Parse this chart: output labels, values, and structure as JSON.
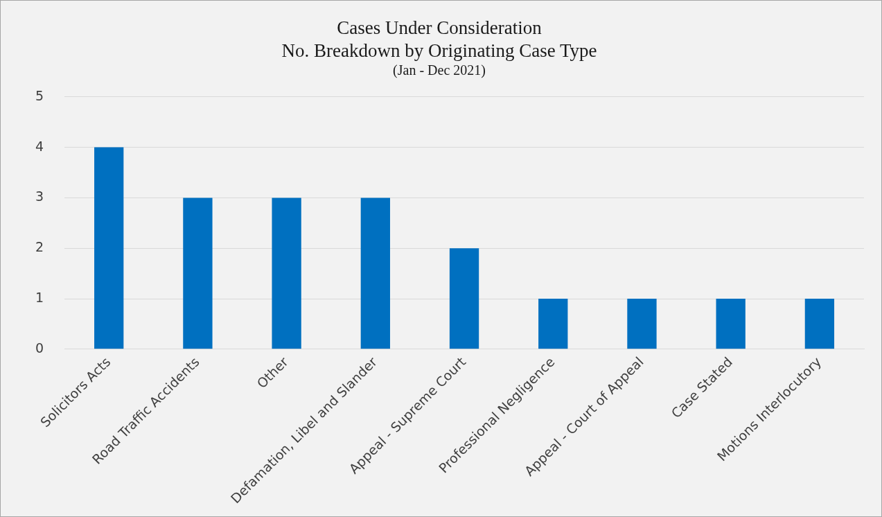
{
  "chart_data": {
    "type": "bar",
    "title": "Cases Under Consideration\nNo. Breakdown by Originating Case Type",
    "subtitle": "(Jan - Dec 2021)",
    "categories": [
      "Solicitors Acts",
      "Road Traffic Accidents",
      "Other",
      "Defamation, Libel and Slander",
      "Appeal - Supreme Court",
      "Professional Negligence",
      "Appeal - Court of Appeal",
      "Case Stated",
      "Motions Interlocutory"
    ],
    "values": [
      4,
      3,
      3,
      3,
      2,
      1,
      1,
      1,
      1
    ],
    "color": "#0070c0",
    "ylim": [
      0,
      5
    ],
    "yticks": [
      0,
      1,
      2,
      3,
      4,
      5
    ],
    "grid": "y",
    "legend": false
  }
}
